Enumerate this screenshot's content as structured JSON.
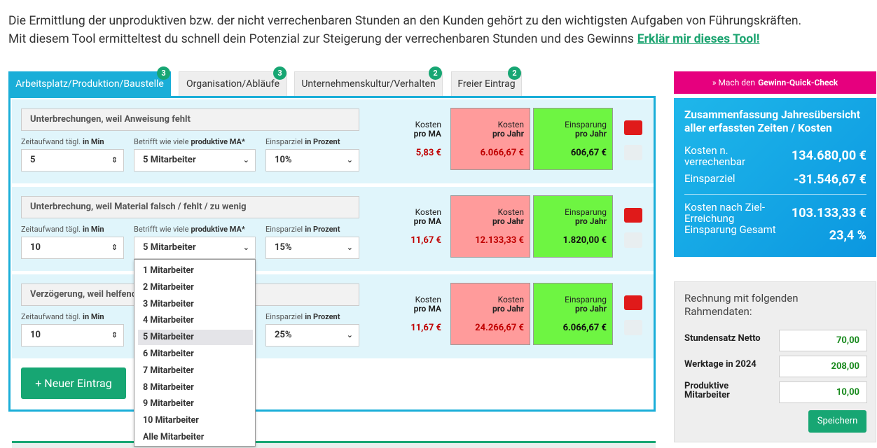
{
  "intro": {
    "line1": "Die Ermittlung der unproduktiven bzw. der nicht verrechenbaren Stunden an den Kunden gehört zu den wichtigsten Aufgaben von Führungskräften.",
    "line2": "Mit diesem Tool ermitteltest du schnell dein Potenzial zur Steigerung der verrechenbaren Stunden und des Gewinns",
    "link": "Erklär mir dieses Tool!"
  },
  "tabs": [
    {
      "label": "Arbeitsplatz/Produktion/Baustelle",
      "badge": "3"
    },
    {
      "label": "Organisation/Abläufe",
      "badge": "3"
    },
    {
      "label": "Unternehmenskultur/Verhalten",
      "badge": "2"
    },
    {
      "label": "Freier Eintrag",
      "badge": "2"
    }
  ],
  "labels": {
    "time": [
      "Zeitaufwand tägl.",
      "in Min"
    ],
    "ma": [
      "Betrifft wie viele",
      "produktive MA*"
    ],
    "pct": [
      "Einsparziel",
      "in Prozent"
    ],
    "cost_ma": [
      "Kosten",
      "pro MA"
    ],
    "cost_year": [
      "Kosten",
      "pro Jahr"
    ],
    "saving": [
      "Einsparung",
      "pro Jahr"
    ]
  },
  "rows": [
    {
      "title": "Unterbrechungen, weil Anweisung fehlt",
      "time": "5",
      "ma": "5 Mitarbeiter",
      "pct": "10%",
      "cost_ma": "5,83 €",
      "cost_year": "6.066,67 €",
      "saving": "606,67 €"
    },
    {
      "title": "Unterbrechung, weil Material falsch / fehlt / zu wenig",
      "time": "10",
      "ma": "5 Mitarbeiter",
      "pct": "15%",
      "cost_ma": "11,67 €",
      "cost_year": "12.133,33 €",
      "saving": "1.820,00 €"
    },
    {
      "title": "Verzögerung, weil helfend",
      "time": "10",
      "pct": "25%",
      "cost_ma": "11,67 €",
      "cost_year": "24.266,67 €",
      "saving": "6.066,67 €"
    }
  ],
  "dropdown": {
    "options": [
      "1 Mitarbeiter",
      "2 Mitarbeiter",
      "3 Mitarbeiter",
      "4 Mitarbeiter",
      "5 Mitarbeiter",
      "6 Mitarbeiter",
      "7 Mitarbeiter",
      "8 Mitarbeiter",
      "9 Mitarbeiter",
      "10 Mitarbeiter",
      "Alle Mitarbeiter"
    ],
    "selected": 4
  },
  "new_entry": "+ Neuer Eintrag",
  "quick_check": [
    "» Mach den",
    "Gewinn-Quick-Check"
  ],
  "summary": {
    "title": "Zusammenfassung Jahresübersicht aller erfassten Zeiten / Kosten",
    "items": [
      {
        "label": "Kosten n. verrechenbar",
        "value": "134.680,00 €"
      },
      {
        "label": "Einsparziel",
        "value": "-31.546,67 €"
      },
      {
        "label": "Kosten nach Ziel-Erreichung",
        "value": "103.133,33 €"
      },
      {
        "label": "Einsparung Gesamt",
        "value": "23,4 %"
      }
    ]
  },
  "settings": {
    "title": "Rechnung mit folgenden Rahmendaten:",
    "fields": [
      {
        "label": "Stundensatz Netto",
        "value": "70,00"
      },
      {
        "label": "Werktage in 2024",
        "value": "208,00"
      },
      {
        "label": "Produktive Mitarbeiter",
        "value": "10,00"
      }
    ],
    "button": "Speichern"
  }
}
